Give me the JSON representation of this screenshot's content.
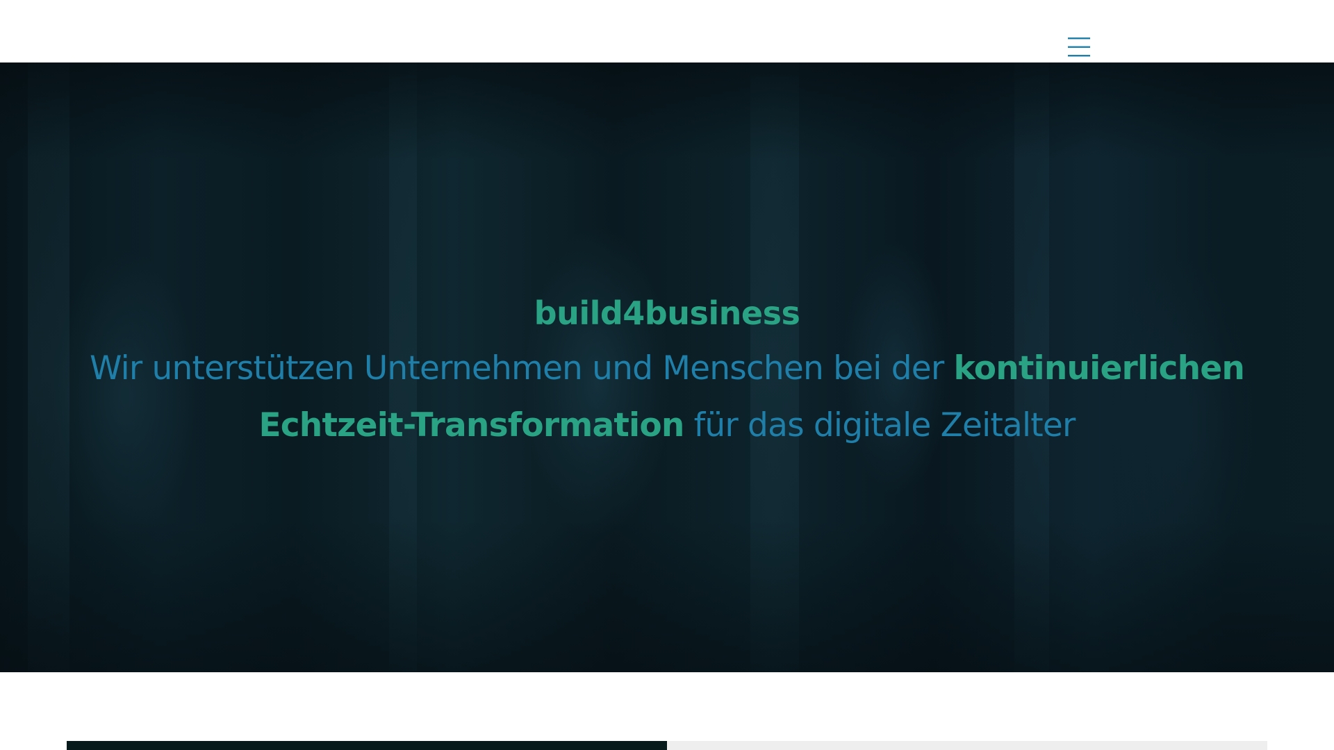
{
  "header": {
    "menu_icon": "hamburger-menu-icon",
    "accent_color": "#1f7fa8"
  },
  "hero": {
    "title": "build4business",
    "subtitle_part1": "Wir unterstützen Unternehmen und Menschen bei der ",
    "subtitle_accent": "kontinuierlichen Echtzeit-Transformation",
    "subtitle_part2": " für das digitale Zeitalter",
    "title_color": "#2aa385",
    "subtitle_color": "#1f7fa8"
  }
}
